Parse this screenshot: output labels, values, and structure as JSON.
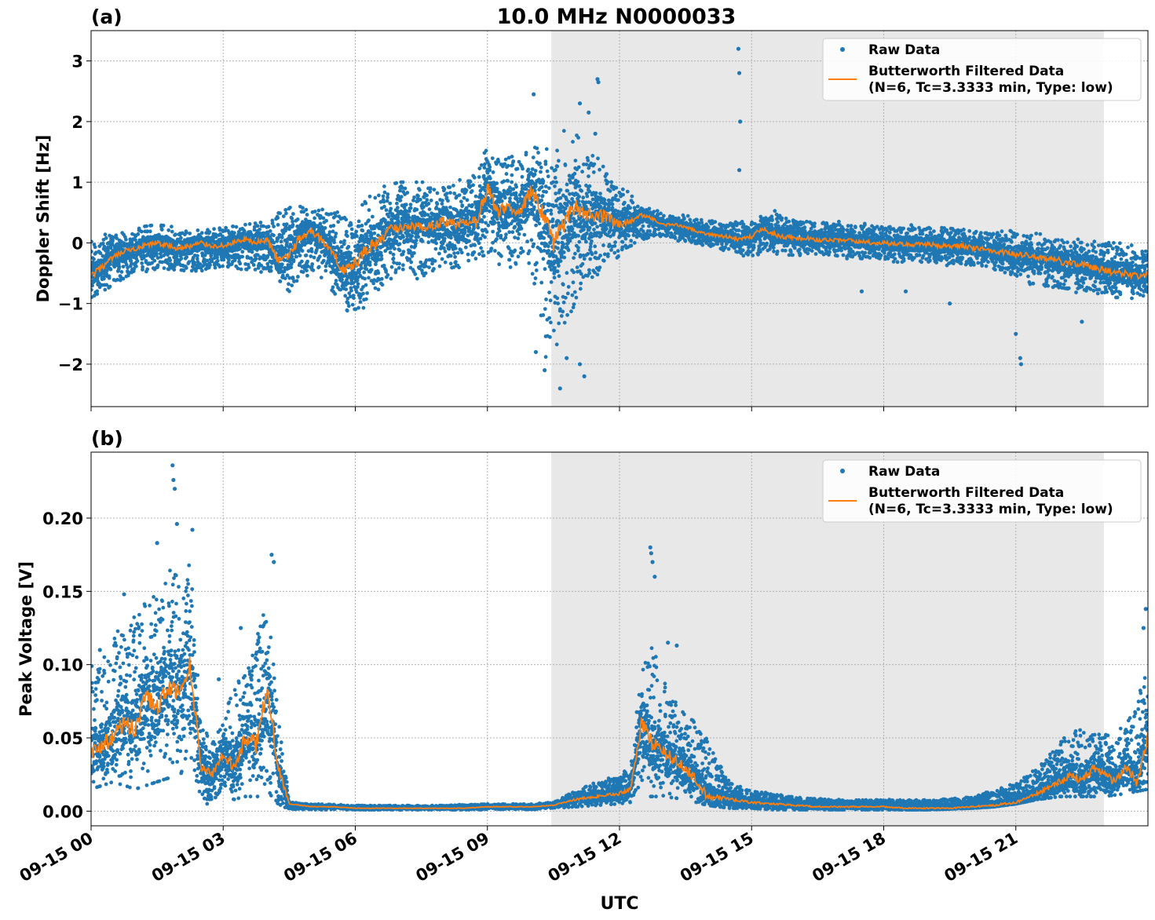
{
  "figure": {
    "title": "10.0 MHz N0000033",
    "xlabel": "UTC"
  },
  "chart_data": [
    {
      "panel_label": "(a)",
      "type": "scatter",
      "ylabel": "Doppler Shift [Hz]",
      "xlim_hours": [
        0,
        24
      ],
      "ylim": [
        -2.7,
        3.5
      ],
      "yticks": [
        3,
        2,
        1,
        0,
        -1,
        -2
      ],
      "ytick_labels": [
        "3",
        "2",
        "1",
        "0",
        "−1",
        "−2"
      ],
      "grid": true,
      "shaded_interval_hours": [
        10.45,
        23.0
      ],
      "legend_position": "top-right",
      "legend": [
        "Raw Data",
        "Butterworth Filtered Data",
        "(N=6, Tc=3.3333 min, Type: low)"
      ],
      "filtered_hours": [
        0,
        0.25,
        0.5,
        0.75,
        1,
        1.25,
        1.5,
        1.75,
        2,
        2.25,
        2.5,
        2.75,
        3,
        3.25,
        3.5,
        3.75,
        4,
        4.25,
        4.5,
        4.75,
        5,
        5.25,
        5.5,
        5.75,
        6,
        6.25,
        6.5,
        6.75,
        7,
        7.25,
        7.5,
        7.75,
        8,
        8.25,
        8.5,
        8.75,
        9,
        9.25,
        9.5,
        9.75,
        10,
        10.25,
        10.5,
        10.75,
        11,
        11.25,
        11.5,
        11.75,
        12,
        12.25,
        12.5,
        12.75,
        13,
        13.25,
        13.5,
        13.75,
        14,
        14.25,
        14.5,
        14.75,
        15,
        15.25,
        15.5,
        15.75,
        16,
        16.25,
        16.5,
        16.75,
        17,
        17.25,
        17.5,
        17.75,
        18,
        18.25,
        18.5,
        18.75,
        19,
        19.25,
        19.5,
        19.75,
        20,
        20.25,
        20.5,
        20.75,
        21,
        21.25,
        21.5,
        21.75,
        22,
        22.25,
        22.5,
        22.75,
        23,
        23.25,
        23.5,
        23.75,
        24
      ],
      "filtered_values": [
        -0.55,
        -0.4,
        -0.25,
        -0.15,
        -0.1,
        -0.05,
        0.0,
        -0.05,
        -0.1,
        -0.05,
        0.0,
        -0.05,
        -0.05,
        0.0,
        0.05,
        0.0,
        0.05,
        -0.3,
        -0.2,
        0.1,
        0.2,
        0.05,
        -0.2,
        -0.45,
        -0.35,
        -0.1,
        0.0,
        0.2,
        0.25,
        0.3,
        0.25,
        0.3,
        0.35,
        0.3,
        0.3,
        0.35,
        0.9,
        0.5,
        0.6,
        0.55,
        0.85,
        0.5,
        0.0,
        0.35,
        0.65,
        0.45,
        0.5,
        0.4,
        0.3,
        0.35,
        0.45,
        0.4,
        0.3,
        0.3,
        0.25,
        0.2,
        0.15,
        0.12,
        0.1,
        0.05,
        0.1,
        0.25,
        0.15,
        0.1,
        0.08,
        0.08,
        0.05,
        0.05,
        0.05,
        0.03,
        0.02,
        0.0,
        0.0,
        -0.02,
        -0.02,
        -0.03,
        -0.02,
        -0.05,
        -0.05,
        -0.05,
        -0.08,
        -0.1,
        -0.15,
        -0.15,
        -0.2,
        -0.2,
        -0.25,
        -0.25,
        -0.3,
        -0.35,
        -0.35,
        -0.4,
        -0.45,
        -0.5,
        -0.5,
        -0.55,
        -0.5
      ],
      "envelope_hours": [
        0,
        0.5,
        1,
        1.5,
        2,
        2.5,
        3,
        3.5,
        4,
        4.25,
        4.5,
        5,
        5.5,
        6,
        6.5,
        7,
        7.5,
        8,
        8.5,
        9,
        9.5,
        10,
        10.3,
        10.6,
        10.9,
        11.2,
        11.5,
        12,
        12.5,
        13,
        13.5,
        14,
        14.5,
        15,
        15.5,
        16,
        17,
        18,
        19,
        20,
        20.5,
        21,
        21.5,
        22,
        22.5,
        23,
        23.5,
        24
      ],
      "envelope_upper": [
        0.1,
        0.2,
        0.25,
        0.3,
        0.25,
        0.2,
        0.25,
        0.3,
        0.35,
        0.6,
        0.7,
        0.5,
        0.6,
        0.5,
        0.9,
        1.0,
        1.0,
        1.0,
        1.05,
        1.55,
        1.4,
        1.6,
        1.5,
        1.8,
        1.9,
        1.6,
        1.4,
        1.0,
        0.6,
        0.5,
        0.45,
        0.4,
        0.35,
        0.35,
        0.55,
        0.4,
        0.35,
        0.3,
        0.3,
        0.25,
        0.2,
        0.2,
        0.15,
        0.1,
        0.05,
        0.05,
        0.0,
        -0.1
      ],
      "envelope_lower": [
        -0.9,
        -0.7,
        -0.5,
        -0.45,
        -0.5,
        -0.5,
        -0.45,
        -0.5,
        -0.5,
        -0.6,
        -0.8,
        -0.5,
        -0.8,
        -1.3,
        -0.9,
        -0.6,
        -0.6,
        -0.5,
        -0.5,
        -0.3,
        -0.4,
        -0.6,
        -1.9,
        -1.7,
        -1.3,
        -0.8,
        -0.6,
        -0.2,
        0.0,
        0.1,
        0.0,
        -0.1,
        -0.15,
        -0.25,
        -0.2,
        -0.2,
        -0.25,
        -0.3,
        -0.35,
        -0.4,
        -0.5,
        -0.6,
        -0.75,
        -0.8,
        -0.85,
        -0.9,
        -0.9,
        -0.95
      ],
      "outliers": [
        [
          10.05,
          2.45
        ],
        [
          11.1,
          2.3
        ],
        [
          11.3,
          2.15
        ],
        [
          11.45,
          1.8
        ],
        [
          11.5,
          2.7
        ],
        [
          11.52,
          2.65
        ],
        [
          14.7,
          3.2
        ],
        [
          14.72,
          2.8
        ],
        [
          14.74,
          2.0
        ],
        [
          14.72,
          1.2
        ],
        [
          10.1,
          -1.8
        ],
        [
          10.3,
          -2.1
        ],
        [
          10.65,
          -2.4
        ],
        [
          10.8,
          -1.9
        ],
        [
          11.1,
          -2.0
        ],
        [
          11.2,
          -2.2
        ],
        [
          21.0,
          -1.5
        ],
        [
          21.1,
          -1.9
        ],
        [
          21.12,
          -2.0
        ],
        [
          22.5,
          -1.3
        ],
        [
          17.5,
          -0.8
        ],
        [
          18.5,
          -0.8
        ],
        [
          19.5,
          -1.0
        ]
      ]
    },
    {
      "panel_label": "(b)",
      "type": "scatter",
      "ylabel": "Peak Voltage [V]",
      "xlim_hours": [
        0,
        24
      ],
      "ylim": [
        -0.01,
        0.245
      ],
      "yticks": [
        0.2,
        0.15,
        0.1,
        0.05,
        0.0
      ],
      "ytick_labels": [
        "0.20",
        "0.15",
        "0.10",
        "0.05",
        "0.00"
      ],
      "grid": true,
      "shaded_interval_hours": [
        10.45,
        23.0
      ],
      "legend_position": "top-right",
      "legend": [
        "Raw Data",
        "Butterworth Filtered Data",
        "(N=6, Tc=3.3333 min, Type: low)"
      ],
      "filtered_hours": [
        0,
        0.25,
        0.5,
        0.75,
        1,
        1.25,
        1.5,
        1.75,
        2,
        2.25,
        2.5,
        2.75,
        3,
        3.25,
        3.5,
        3.75,
        4,
        4.25,
        4.5,
        4.75,
        5,
        5.5,
        6,
        6.5,
        7,
        7.5,
        8,
        8.5,
        9,
        9.5,
        10,
        10.5,
        11,
        11.5,
        12,
        12.25,
        12.5,
        12.75,
        13,
        13.25,
        13.5,
        13.75,
        14,
        14.5,
        15,
        15.5,
        16,
        16.5,
        17,
        17.5,
        18,
        18.5,
        19,
        19.5,
        20,
        20.5,
        21,
        21.5,
        22,
        22.25,
        22.5,
        22.75,
        23,
        23.25,
        23.5,
        23.75,
        24
      ],
      "filtered_values": [
        0.04,
        0.045,
        0.05,
        0.06,
        0.055,
        0.08,
        0.07,
        0.085,
        0.08,
        0.1,
        0.03,
        0.025,
        0.04,
        0.03,
        0.05,
        0.045,
        0.085,
        0.03,
        0.005,
        0.004,
        0.003,
        0.003,
        0.002,
        0.002,
        0.002,
        0.002,
        0.002,
        0.002,
        0.003,
        0.003,
        0.003,
        0.004,
        0.008,
        0.01,
        0.012,
        0.015,
        0.06,
        0.045,
        0.04,
        0.035,
        0.03,
        0.02,
        0.01,
        0.008,
        0.006,
        0.005,
        0.004,
        0.003,
        0.003,
        0.003,
        0.003,
        0.002,
        0.002,
        0.002,
        0.003,
        0.004,
        0.006,
        0.012,
        0.02,
        0.025,
        0.02,
        0.03,
        0.025,
        0.02,
        0.03,
        0.02,
        0.05
      ],
      "envelope_hours": [
        0,
        0.5,
        1,
        1.5,
        2,
        2.25,
        2.5,
        2.75,
        3,
        3.25,
        3.5,
        3.75,
        4,
        4.25,
        4.5,
        5,
        6,
        7,
        8,
        9,
        10,
        10.5,
        11,
        11.5,
        12,
        12.25,
        12.5,
        12.75,
        13,
        13.5,
        14,
        14.5,
        15,
        15.5,
        16,
        17,
        18,
        19,
        20,
        20.5,
        21,
        21.5,
        22,
        22.5,
        23,
        23.5,
        24
      ],
      "envelope_upper": [
        0.1,
        0.12,
        0.14,
        0.16,
        0.17,
        0.18,
        0.06,
        0.05,
        0.07,
        0.09,
        0.1,
        0.12,
        0.16,
        0.07,
        0.006,
        0.005,
        0.004,
        0.004,
        0.004,
        0.005,
        0.005,
        0.006,
        0.015,
        0.02,
        0.025,
        0.03,
        0.1,
        0.12,
        0.09,
        0.07,
        0.05,
        0.02,
        0.015,
        0.012,
        0.01,
        0.008,
        0.008,
        0.008,
        0.01,
        0.015,
        0.02,
        0.03,
        0.05,
        0.06,
        0.055,
        0.06,
        0.1
      ],
      "envelope_lower": [
        0.015,
        0.02,
        0.015,
        0.02,
        0.025,
        0.03,
        0.005,
        0.005,
        0.01,
        0.008,
        0.01,
        0.01,
        0.01,
        0.005,
        0.001,
        0.001,
        0.001,
        0.001,
        0.001,
        0.001,
        0.001,
        0.002,
        0.003,
        0.004,
        0.005,
        0.006,
        0.01,
        0.01,
        0.01,
        0.008,
        0.004,
        0.002,
        0.002,
        0.001,
        0.001,
        0.001,
        0.001,
        0.001,
        0.002,
        0.003,
        0.005,
        0.008,
        0.01,
        0.01,
        0.01,
        0.012,
        0.015
      ],
      "outliers": [
        [
          1.85,
          0.236
        ],
        [
          1.87,
          0.226
        ],
        [
          1.9,
          0.22
        ],
        [
          1.95,
          0.196
        ],
        [
          1.5,
          0.183
        ],
        [
          2.3,
          0.192
        ],
        [
          4.1,
          0.175
        ],
        [
          4.15,
          0.17
        ],
        [
          0.75,
          0.148
        ],
        [
          3.4,
          0.125
        ],
        [
          2.9,
          0.09
        ],
        [
          12.7,
          0.18
        ],
        [
          12.72,
          0.176
        ],
        [
          12.75,
          0.17
        ],
        [
          12.8,
          0.16
        ],
        [
          13.1,
          0.115
        ],
        [
          13.3,
          0.113
        ],
        [
          23.95,
          0.138
        ],
        [
          23.9,
          0.125
        ],
        [
          0.2,
          0.11
        ]
      ]
    }
  ],
  "xaxis": {
    "tick_hours": [
      0,
      3,
      6,
      9,
      12,
      15,
      18,
      21
    ],
    "tick_labels": [
      "09-15 00",
      "09-15 03",
      "09-15 06",
      "09-15 09",
      "09-15 12",
      "09-15 15",
      "09-15 18",
      "09-15 21"
    ]
  },
  "colors": {
    "raw": "#1f77b4",
    "filtered": "#ff7f0e",
    "shade": "#e8e8e8",
    "grid": "#b0b0b0"
  }
}
